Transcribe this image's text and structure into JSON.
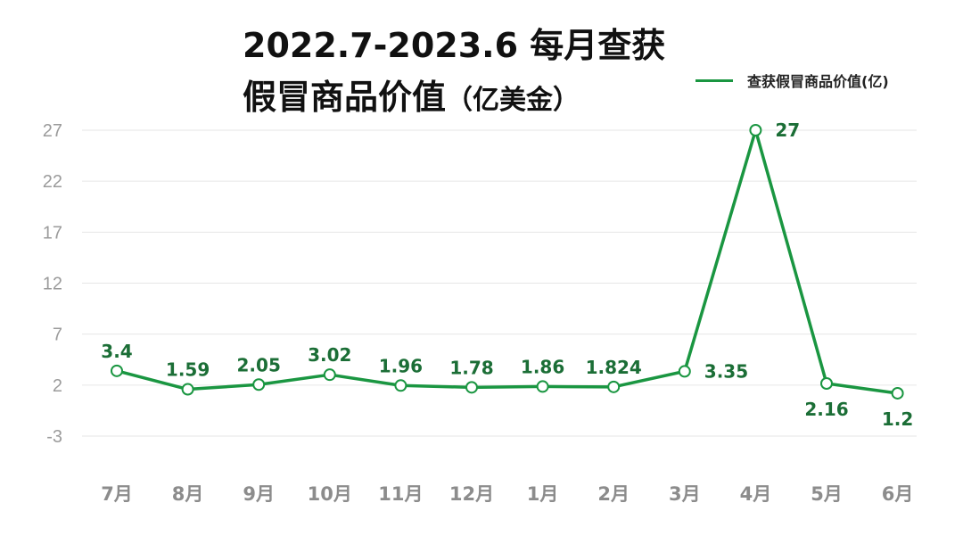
{
  "chart_data": {
    "type": "line",
    "title_line1": "2022.7-2023.6  每月查获",
    "title_line2": "假冒商品价值",
    "title_unit": "（亿美金）",
    "categories": [
      "7月",
      "8月",
      "9月",
      "10月",
      "11月",
      "12月",
      "1月",
      "2月",
      "3月",
      "4月",
      "5月",
      "6月"
    ],
    "series": [
      {
        "name": "查获假冒商品价值(亿)",
        "values": [
          3.4,
          1.59,
          2.05,
          3.02,
          1.96,
          1.78,
          1.86,
          1.824,
          3.35,
          27,
          2.16,
          1.2
        ],
        "labels": [
          "3.4",
          "1.59",
          "2.05",
          "3.02",
          "1.96",
          "1.78",
          "1.86",
          "1.824",
          "3.35",
          "27",
          "2.16",
          "1.2"
        ],
        "label_positions": [
          "above",
          "above",
          "above",
          "above",
          "above",
          "above",
          "above",
          "above",
          "right",
          "right",
          "below",
          "below"
        ]
      }
    ],
    "yticks": [
      -3,
      2,
      7,
      12,
      17,
      22,
      27
    ],
    "ylim": [
      -3,
      27
    ],
    "grid": true,
    "legend_position": "top-right"
  },
  "colors": {
    "line": "#1a9641",
    "label": "#1b6e36",
    "grid": "#e6e6e6",
    "tick": "#9b9b9b",
    "category": "#8c8c8c"
  }
}
